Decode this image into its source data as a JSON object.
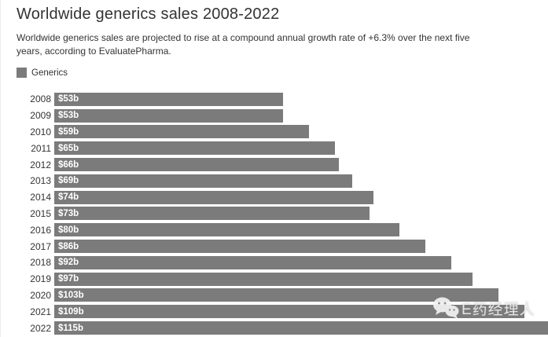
{
  "title": "Worldwide generics sales 2008-2022",
  "subtitle": "Worldwide generics sales are projected to rise at a compound annual growth rate of +6.3% over the next five years, according to EvaluatePharma.",
  "legend": {
    "label": "Generics"
  },
  "watermark": {
    "icon": "wechat-icon",
    "text": "E药经理人"
  },
  "colors": {
    "bar": "#7b7b7b",
    "bar_label": "#ffffff",
    "text": "#333333",
    "background": "#ffffff",
    "watermark": "#ededed"
  },
  "chart_data": {
    "type": "bar",
    "orientation": "horizontal",
    "title": "Worldwide generics sales 2008-2022",
    "subtitle": "Worldwide generics sales are projected to rise at a compound annual growth rate of +6.3% over the next five years, according to EvaluatePharma.",
    "series_name": "Generics",
    "categories": [
      "2008",
      "2009",
      "2010",
      "2011",
      "2012",
      "2013",
      "2014",
      "2015",
      "2016",
      "2017",
      "2018",
      "2019",
      "2020",
      "2021",
      "2022"
    ],
    "values": [
      53,
      53,
      59,
      65,
      66,
      69,
      74,
      73,
      80,
      86,
      92,
      97,
      103,
      109,
      115
    ],
    "value_labels": [
      "$53b",
      "$53b",
      "$59b",
      "$65b",
      "$66b",
      "$69b",
      "$74b",
      "$73b",
      "$80b",
      "$86b",
      "$92b",
      "$97b",
      "$103b",
      "$109b",
      "$115b"
    ],
    "unit": "USD billions",
    "xlim": [
      0,
      115
    ],
    "grid": false,
    "legend_position": "top-left",
    "bar_color": "#7b7b7b"
  }
}
